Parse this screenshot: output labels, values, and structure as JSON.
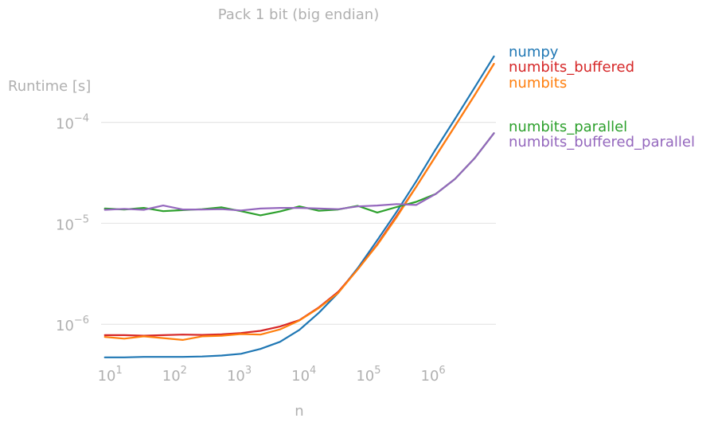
{
  "chart_data": {
    "type": "line",
    "title": "Pack 1 bit (big endian)",
    "xlabel": "n",
    "ylabel": "Runtime [s]",
    "xscale": "log",
    "yscale": "log",
    "xlim": [
      7,
      9000000
    ],
    "ylim": [
      4.6e-07,
      0.0006
    ],
    "grid": "horizontal",
    "legend": "right-side labels",
    "xticks": [
      {
        "value": 10,
        "base": "10",
        "exp": "1"
      },
      {
        "value": 100,
        "base": "10",
        "exp": "2"
      },
      {
        "value": 1000,
        "base": "10",
        "exp": "3"
      },
      {
        "value": 10000,
        "base": "10",
        "exp": "4"
      },
      {
        "value": 100000,
        "base": "10",
        "exp": "5"
      },
      {
        "value": 1000000,
        "base": "10",
        "exp": "6"
      }
    ],
    "yticks": [
      {
        "value": 1e-06,
        "base": "10",
        "exp": "−6"
      },
      {
        "value": 1e-05,
        "base": "10",
        "exp": "−5"
      },
      {
        "value": 0.0001,
        "base": "10",
        "exp": "−4"
      }
    ],
    "x": [
      8,
      16,
      32,
      64,
      128,
      256,
      512,
      1024,
      2048,
      4096,
      8192,
      16384,
      32768,
      65536,
      131072,
      262144,
      524288,
      1048576,
      2097152,
      4194304,
      8388608
    ],
    "series": [
      {
        "name": "numpy",
        "color": "#1f77b4",
        "values": [
          4.7e-07,
          4.7e-07,
          4.75e-07,
          4.75e-07,
          4.75e-07,
          4.8e-07,
          4.9e-07,
          5.1e-07,
          5.7e-07,
          6.7e-07,
          8.8e-07,
          1.3e-06,
          2.05e-06,
          3.6e-06,
          6.8e-06,
          1.3e-05,
          2.6e-05,
          5.4e-05,
          0.000108,
          0.00022,
          0.00045
        ]
      },
      {
        "name": "numbits_buffered",
        "color": "#d62728",
        "values": [
          7.8e-07,
          7.8e-07,
          7.7e-07,
          7.8e-07,
          7.9e-07,
          7.85e-07,
          7.95e-07,
          8.2e-07,
          8.6e-07,
          9.5e-07,
          1.1e-06,
          1.47e-06,
          2.1e-06,
          3.5e-06,
          6.2e-06,
          1.18e-05,
          2.3e-05,
          4.6e-05,
          9.2e-05,
          0.000185,
          0.00038
        ]
      },
      {
        "name": "numbits",
        "color": "#ff7f0e",
        "values": [
          7.5e-07,
          7.2e-07,
          7.6e-07,
          7.3e-07,
          7e-07,
          7.6e-07,
          7.7e-07,
          8e-07,
          7.9e-07,
          8.9e-07,
          1.09e-06,
          1.45e-06,
          2.05e-06,
          3.5e-06,
          6.1e-06,
          1.15e-05,
          2.3e-05,
          4.6e-05,
          9.2e-05,
          0.000185,
          0.00038
        ]
      },
      {
        "name": "numbits_parallel",
        "color": "#2ca02c",
        "values": [
          1.4e-05,
          1.37e-05,
          1.42e-05,
          1.32e-05,
          1.35e-05,
          1.38e-05,
          1.44e-05,
          1.32e-05,
          1.2e-05,
          1.31e-05,
          1.47e-05,
          1.33e-05,
          1.37e-05,
          1.49e-05,
          1.28e-05,
          1.45e-05,
          1.63e-05,
          1.95e-05,
          2.75e-05,
          4.4e-05,
          7.8e-05
        ]
      },
      {
        "name": "numbits_buffered_parallel",
        "color": "#9467bd",
        "values": [
          1.36e-05,
          1.39e-05,
          1.36e-05,
          1.5e-05,
          1.37e-05,
          1.37e-05,
          1.38e-05,
          1.34e-05,
          1.4e-05,
          1.42e-05,
          1.42e-05,
          1.4e-05,
          1.38e-05,
          1.47e-05,
          1.5e-05,
          1.55e-05,
          1.52e-05,
          1.95e-05,
          2.75e-05,
          4.4e-05,
          7.8e-05
        ]
      }
    ]
  }
}
